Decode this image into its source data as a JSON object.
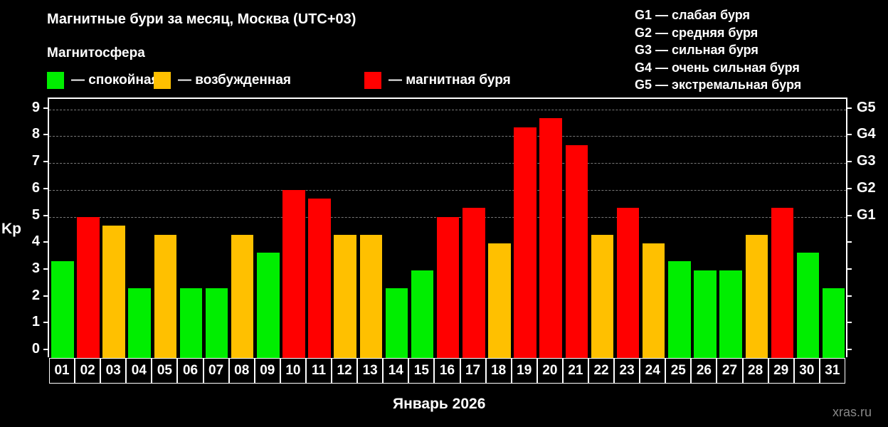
{
  "title": "Магнитные бури за месяц, Москва (UTC+03)",
  "legend": {
    "heading": "Магнитосфера",
    "items": [
      {
        "label": "— спокойная",
        "color": "#00ee00"
      },
      {
        "label": "— возбужденная",
        "color": "#ffc000"
      },
      {
        "label": "— магнитная буря",
        "color": "#ff0000"
      }
    ]
  },
  "g_scale_legend": [
    "G1 — слабая буря",
    "G2 — средняя буря",
    "G3 — сильная буря",
    "G4 — очень сильная буря",
    "G5 — экстремальная буря"
  ],
  "colors": {
    "quiet": "#00ee00",
    "unsettled": "#ffc000",
    "storm": "#ff0000",
    "background": "#000000"
  },
  "watermark": "xras.ru",
  "chart_data": {
    "type": "bar",
    "title": "Магнитные бури за месяц, Москва (UTC+03)",
    "xlabel": "Январь 2026",
    "ylabel": "Kp",
    "ylim": [
      0,
      9
    ],
    "yticks": [
      0,
      1,
      2,
      3,
      4,
      5,
      6,
      7,
      8,
      9
    ],
    "right_axis_labels": [
      {
        "kp": 5,
        "label": "G1"
      },
      {
        "kp": 6,
        "label": "G2"
      },
      {
        "kp": 7,
        "label": "G3"
      },
      {
        "kp": 8,
        "label": "G4"
      },
      {
        "kp": 9,
        "label": "G5"
      }
    ],
    "grid": "horizontal dashed at Kp 5–9",
    "categories": [
      "01",
      "02",
      "03",
      "04",
      "05",
      "06",
      "07",
      "08",
      "09",
      "10",
      "11",
      "12",
      "13",
      "14",
      "15",
      "16",
      "17",
      "18",
      "19",
      "20",
      "21",
      "22",
      "23",
      "24",
      "25",
      "26",
      "27",
      "28",
      "29",
      "30",
      "31"
    ],
    "values": [
      3.33,
      5.0,
      4.67,
      2.33,
      4.33,
      2.33,
      2.33,
      4.33,
      3.67,
      6.0,
      5.67,
      4.33,
      4.33,
      2.33,
      3.0,
      5.0,
      5.33,
      4.0,
      8.33,
      8.67,
      7.67,
      4.33,
      5.33,
      4.0,
      3.33,
      3.0,
      3.0,
      4.33,
      5.33,
      3.67,
      2.33
    ],
    "status": [
      "quiet",
      "storm",
      "unsettled",
      "quiet",
      "unsettled",
      "quiet",
      "quiet",
      "unsettled",
      "quiet",
      "storm",
      "storm",
      "unsettled",
      "unsettled",
      "quiet",
      "quiet",
      "storm",
      "storm",
      "unsettled",
      "storm",
      "storm",
      "storm",
      "unsettled",
      "storm",
      "unsettled",
      "quiet",
      "quiet",
      "quiet",
      "unsettled",
      "storm",
      "quiet",
      "quiet"
    ],
    "legend_position": "top"
  }
}
